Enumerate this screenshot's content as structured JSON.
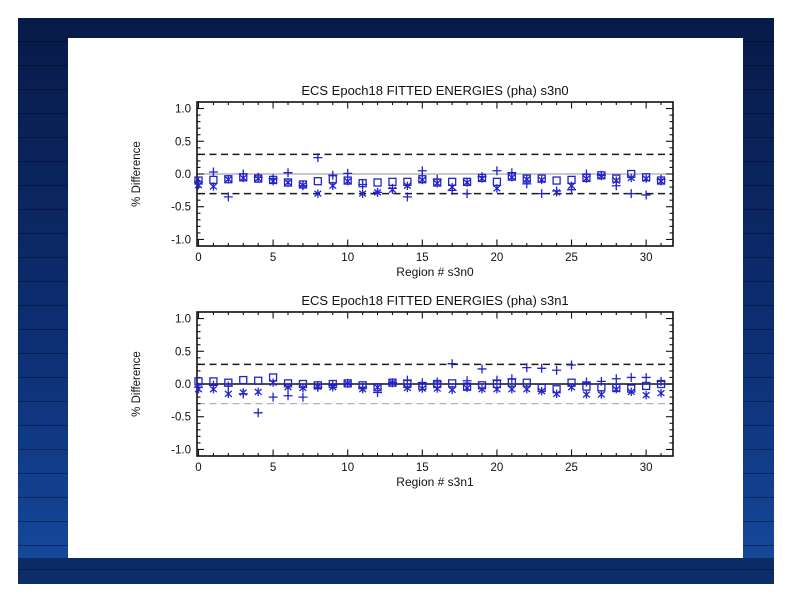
{
  "slide": {
    "background": "#ffffff",
    "frame_colors": {
      "top": "#071b48",
      "middle": "#0d2f74",
      "bottom": "#164a9e"
    },
    "panel_background": "#ffffff"
  },
  "chart_data": [
    {
      "type": "scatter",
      "title": "ECS Epoch18 FITTED ENERGIES (pha) s3n0",
      "xlabel": "Region # s3n0",
      "ylabel": "% Difference",
      "xlim": [
        -0.1,
        31.8
      ],
      "ylim": [
        -1.1,
        1.1
      ],
      "xticks": [
        0,
        5,
        10,
        15,
        20,
        25,
        30
      ],
      "yticks": [
        -1.0,
        -0.5,
        0.0,
        0.5,
        1.0
      ],
      "ytick_labels": [
        "-1.0",
        "-0.5",
        "0.0",
        "0.5",
        "1.0"
      ],
      "grid": false,
      "legend": false,
      "marker_color": "#2323cc",
      "x": [
        0,
        1,
        2,
        3,
        4,
        5,
        6,
        7,
        8,
        9,
        10,
        11,
        12,
        13,
        14,
        15,
        16,
        17,
        18,
        19,
        20,
        21,
        22,
        23,
        24,
        25,
        26,
        27,
        28,
        29,
        30,
        31
      ],
      "series": [
        {
          "name": "square-markers",
          "marker": "square",
          "values": [
            -0.1,
            -0.09,
            -0.08,
            -0.05,
            -0.07,
            -0.09,
            -0.13,
            -0.16,
            -0.11,
            -0.08,
            -0.1,
            -0.14,
            -0.13,
            -0.12,
            -0.12,
            -0.08,
            -0.13,
            -0.12,
            -0.12,
            -0.06,
            -0.12,
            -0.04,
            -0.07,
            -0.07,
            -0.1,
            -0.09,
            -0.06,
            -0.02,
            -0.07,
            0.0,
            -0.05,
            -0.1
          ]
        },
        {
          "name": "plus-markers",
          "marker": "plus",
          "values": [
            -0.12,
            0.03,
            -0.35,
            0.0,
            -0.05,
            -0.07,
            0.02,
            -0.18,
            0.25,
            -0.02,
            0.01,
            -0.16,
            -0.28,
            -0.22,
            -0.35,
            0.05,
            -0.08,
            -0.25,
            -0.3,
            -0.04,
            0.05,
            0.02,
            -0.15,
            -0.3,
            -0.26,
            -0.24,
            0.0,
            -0.02,
            -0.18,
            -0.3,
            -0.32,
            -0.08
          ]
        },
        {
          "name": "asterisk-markers",
          "marker": "asterisk",
          "values": [
            -0.17,
            -0.19,
            -0.08,
            -0.06,
            -0.07,
            -0.11,
            -0.13,
            -0.17,
            -0.3,
            -0.18,
            -0.11,
            -0.3,
            -0.28,
            -0.24,
            -0.18,
            -0.09,
            -0.14,
            -0.2,
            -0.13,
            -0.07,
            -0.22,
            -0.05,
            -0.08,
            -0.09,
            -0.28,
            -0.18,
            -0.07,
            -0.03,
            -0.1,
            -0.06,
            -0.07,
            -0.11
          ]
        }
      ],
      "ref_lines": [
        {
          "y": 0.3,
          "style": "dashed",
          "color": "#1a1a1a",
          "width": 1.5
        },
        {
          "y": -0.3,
          "style": "dashed",
          "color": "#1a1a1a",
          "width": 1.5
        },
        {
          "y": 0.0,
          "style": "solid",
          "color": "#909090",
          "width": 0.9
        }
      ]
    },
    {
      "type": "scatter",
      "title": "ECS Epoch18 FITTED ENERGIES (pha) s3n1",
      "xlabel": "Region # s3n1",
      "ylabel": "% Difference",
      "xlim": [
        -0.1,
        31.8
      ],
      "ylim": [
        -1.1,
        1.1
      ],
      "xticks": [
        0,
        5,
        10,
        15,
        20,
        25,
        30
      ],
      "yticks": [
        -1.0,
        -0.5,
        0.0,
        0.5,
        1.0
      ],
      "ytick_labels": [
        "-1.0",
        "-0.5",
        "0.0",
        "0.5",
        "1.0"
      ],
      "grid": false,
      "legend": false,
      "marker_color": "#2323cc",
      "x": [
        0,
        1,
        2,
        3,
        4,
        5,
        6,
        7,
        8,
        9,
        10,
        11,
        12,
        13,
        14,
        15,
        16,
        17,
        18,
        19,
        20,
        21,
        22,
        23,
        24,
        25,
        26,
        27,
        28,
        29,
        30,
        31
      ],
      "series": [
        {
          "name": "square-markers",
          "marker": "square",
          "values": [
            0.04,
            0.04,
            0.02,
            0.06,
            0.05,
            0.1,
            0.01,
            0.0,
            -0.02,
            0.0,
            0.01,
            -0.02,
            -0.05,
            0.02,
            0.0,
            -0.03,
            0.0,
            0.01,
            -0.04,
            -0.02,
            0.0,
            0.02,
            0.02,
            -0.06,
            -0.08,
            0.02,
            -0.04,
            -0.05,
            -0.06,
            -0.07,
            -0.03,
            0.0
          ]
        },
        {
          "name": "plus-markers",
          "marker": "plus",
          "values": [
            -0.05,
            -0.02,
            -0.03,
            -0.15,
            -0.44,
            -0.2,
            -0.18,
            -0.2,
            -0.05,
            -0.02,
            0.01,
            -0.05,
            -0.13,
            0.02,
            0.06,
            0.02,
            0.03,
            0.31,
            0.05,
            0.23,
            0.06,
            0.08,
            0.25,
            0.24,
            0.21,
            0.29,
            0.03,
            0.04,
            0.08,
            0.1,
            0.1,
            0.04
          ]
        },
        {
          "name": "asterisk-markers",
          "marker": "asterisk",
          "values": [
            -0.08,
            -0.08,
            -0.15,
            -0.13,
            -0.12,
            0.02,
            -0.05,
            -0.06,
            -0.04,
            -0.05,
            0.01,
            -0.08,
            -0.05,
            0.02,
            -0.06,
            -0.07,
            -0.07,
            -0.09,
            -0.06,
            -0.08,
            -0.08,
            -0.08,
            -0.08,
            -0.11,
            -0.15,
            -0.05,
            -0.16,
            -0.16,
            -0.08,
            -0.12,
            -0.17,
            -0.14
          ]
        }
      ],
      "ref_lines": [
        {
          "y": 0.3,
          "style": "dashed",
          "color": "#1a1a1a",
          "width": 1.5
        },
        {
          "y": -0.3,
          "style": "dashed",
          "color": "#b2b2b2",
          "width": 1.3
        },
        {
          "y": 0.0,
          "style": "solid",
          "color": "#111111",
          "width": 1.5
        }
      ]
    }
  ]
}
